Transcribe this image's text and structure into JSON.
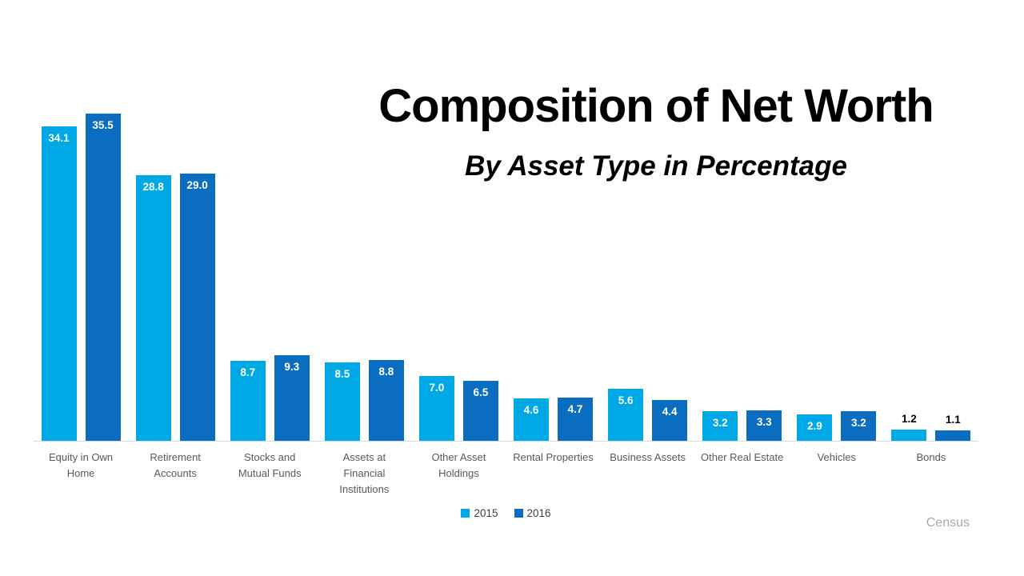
{
  "chart_data": {
    "type": "bar",
    "title": "Composition of Net Worth",
    "subtitle": "By Asset Type in Percentage",
    "categories": [
      "Equity in Own Home",
      "Retirement Accounts",
      "Stocks and Mutual Funds",
      "Assets at Financial Institutions",
      "Other Asset Holdings",
      "Rental Properties",
      "Business Assets",
      "Other Real Estate",
      "Vehicles",
      "Bonds"
    ],
    "series": [
      {
        "name": "2015",
        "color": "#00A9E6",
        "values": [
          34.1,
          28.8,
          8.7,
          8.5,
          7.0,
          4.6,
          5.6,
          3.2,
          2.9,
          1.2
        ]
      },
      {
        "name": "2016",
        "color": "#0B6DBF",
        "values": [
          35.5,
          29.0,
          9.3,
          8.8,
          6.5,
          4.7,
          4.4,
          3.3,
          3.2,
          1.1
        ]
      }
    ],
    "ylim": [
      0,
      36.5
    ],
    "grid": false,
    "legend_position": "bottom-center",
    "value_labels": true,
    "value_label_decimals": 1,
    "value_label_color_inside": "#FFFFFF",
    "value_label_color_outside": "#000000",
    "category_label_color": "#595959",
    "axis_line_color": "#D9D9D9",
    "source": "Census"
  }
}
